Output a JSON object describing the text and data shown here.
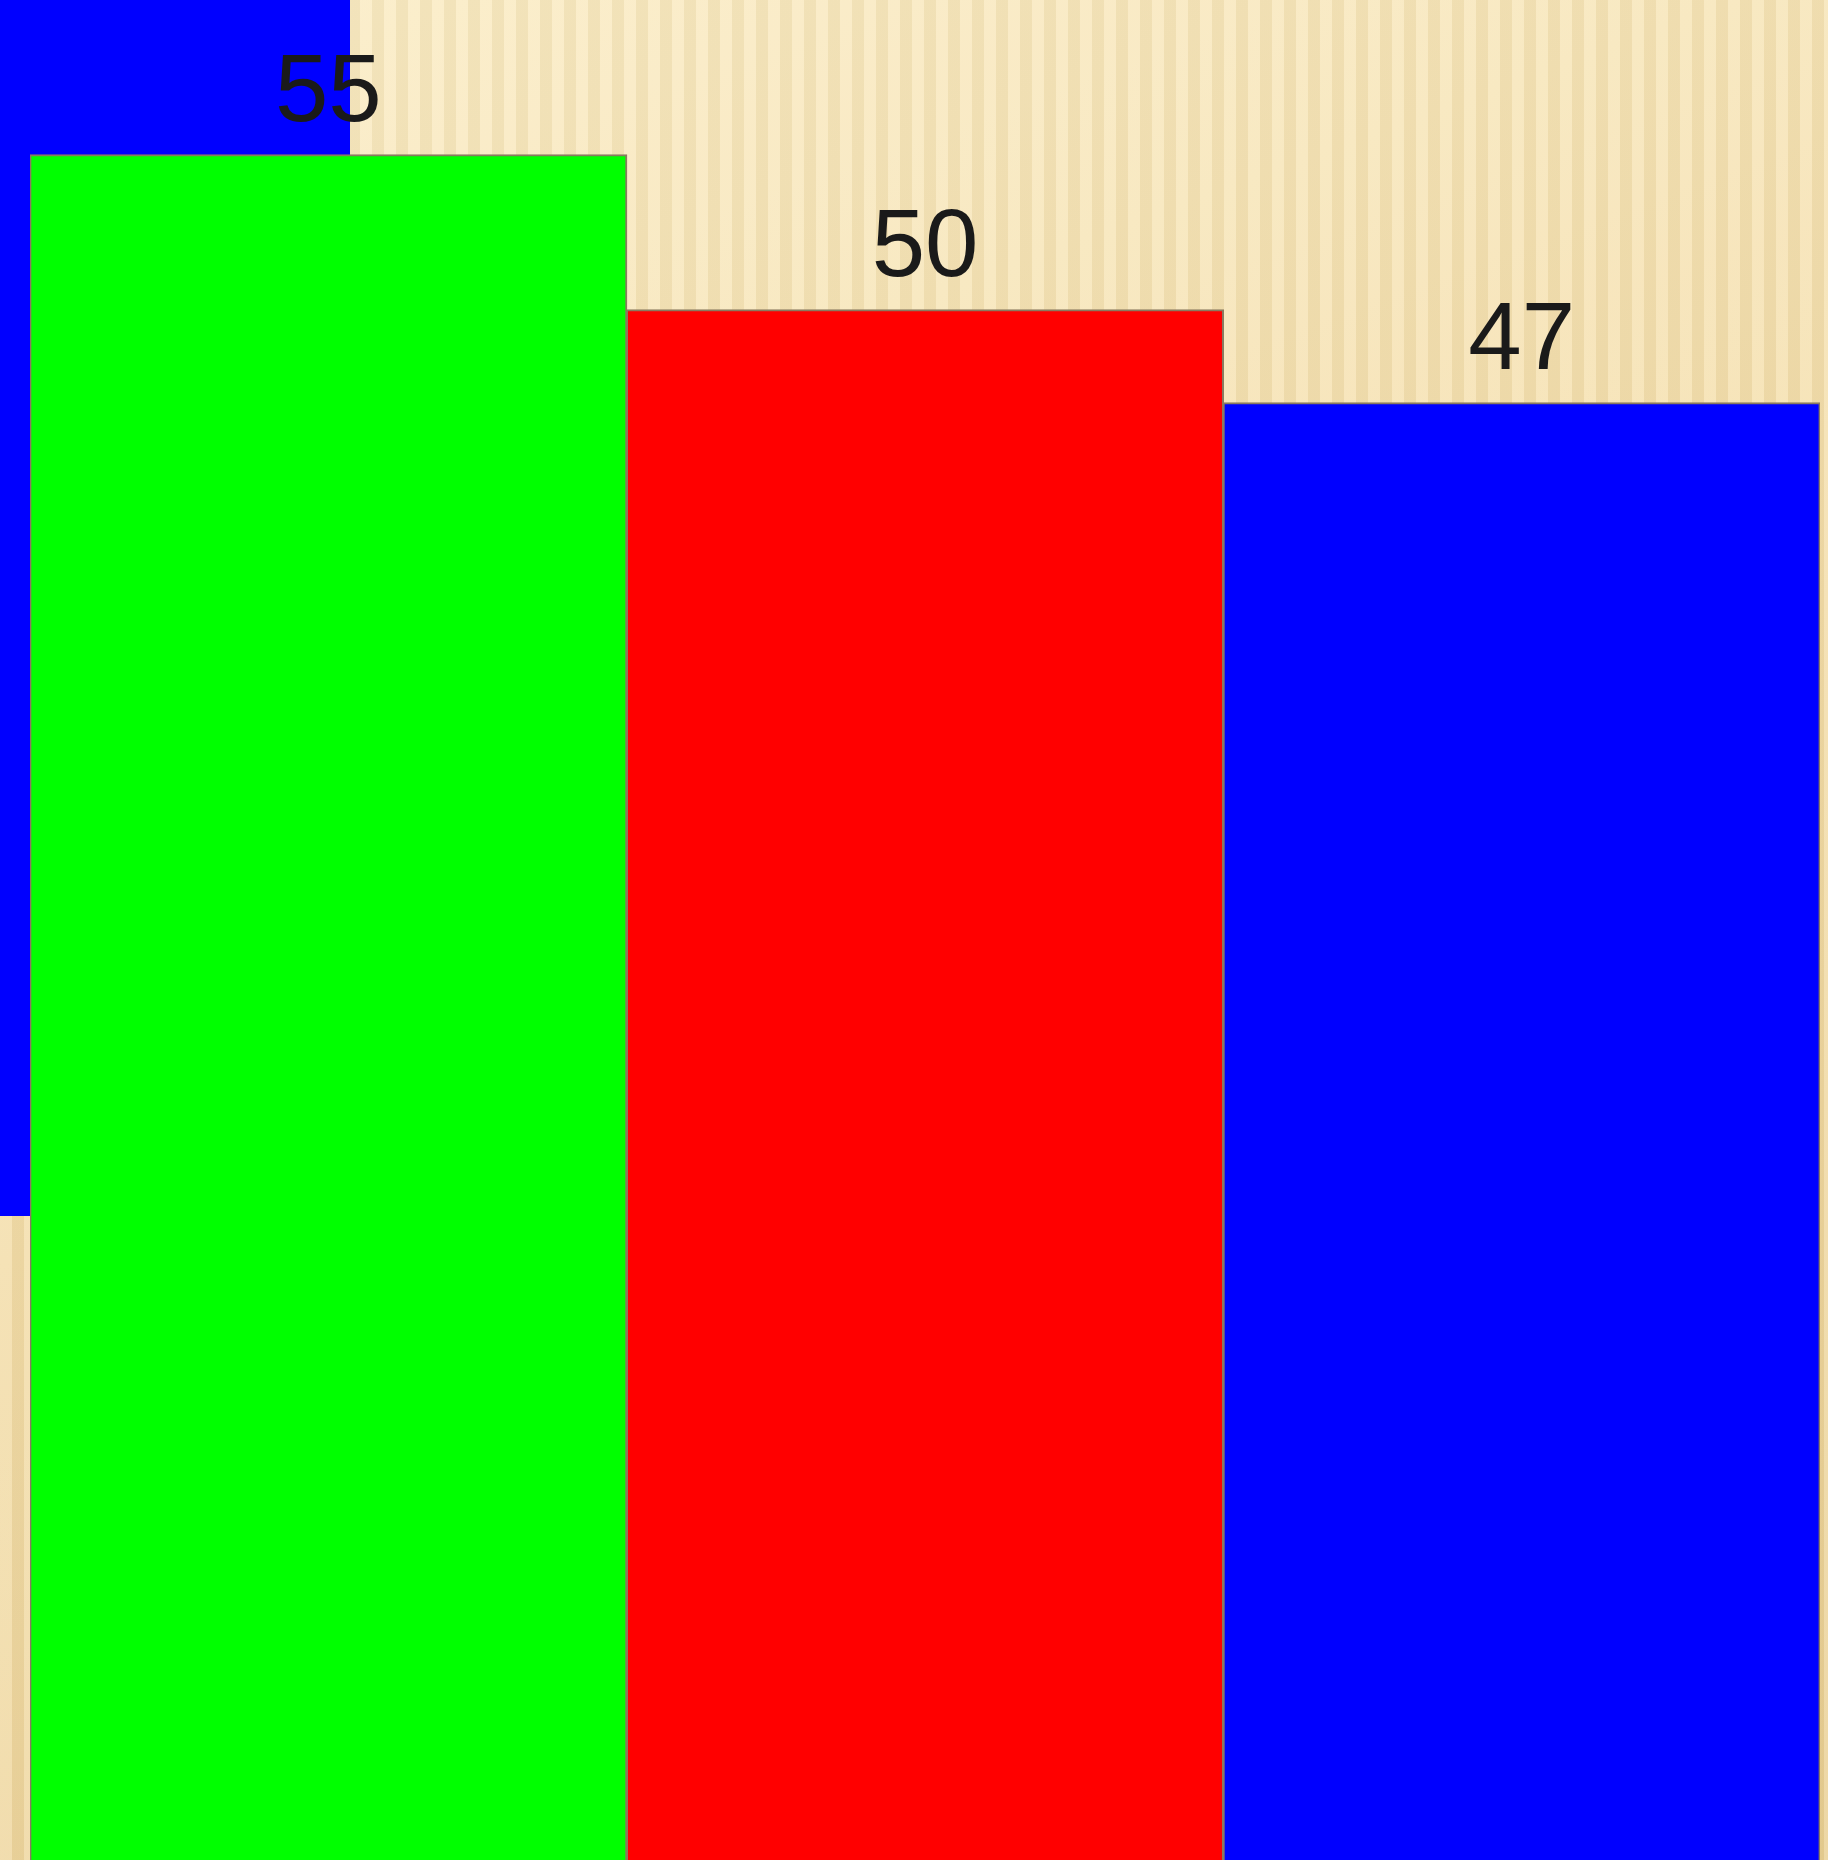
{
  "chart_data": {
    "type": "bar",
    "categories": [
      null,
      null,
      null
    ],
    "values": [
      55,
      50,
      47
    ],
    "colors": [
      "#00ff00",
      "#ff0000",
      "#0000ff"
    ],
    "tick_labels": false,
    "legend": false,
    "data_labels": true
  }
}
